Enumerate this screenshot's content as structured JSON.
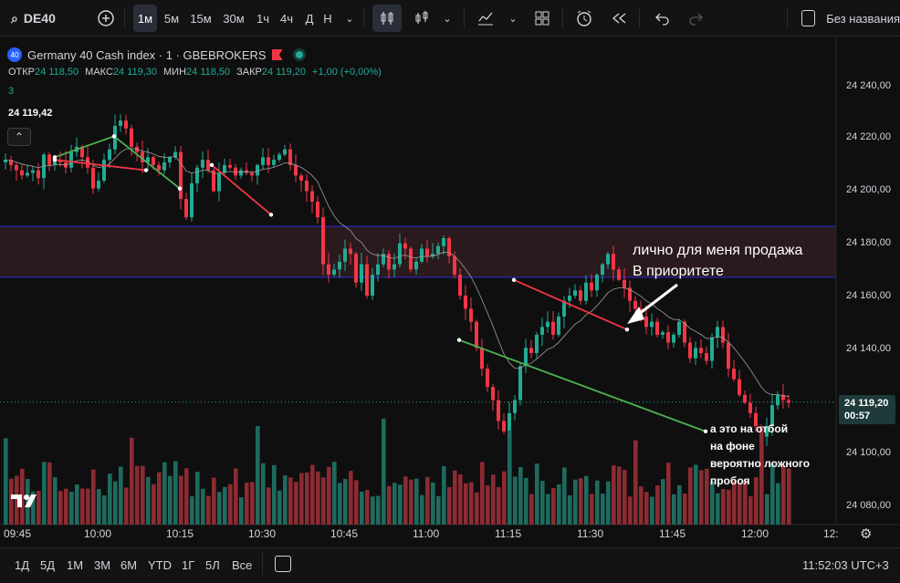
{
  "toolbar": {
    "symbol": "DE40",
    "timeframes": [
      "1м",
      "5м",
      "15м",
      "30м",
      "1ч",
      "4ч",
      "Д",
      "Н"
    ],
    "active_timeframe": "1м",
    "layout_name": "Без названия"
  },
  "legend": {
    "badge": "40",
    "title": "Germany 40 Cash index · 1 · GBEBROKERS",
    "ohlc": [
      {
        "label": "ОТКР",
        "value": "24 118,50"
      },
      {
        "label": "МАКС",
        "value": "24 119,30"
      },
      {
        "label": "МИН",
        "value": "24 118,50"
      },
      {
        "label": "ЗАКР",
        "value": "24 119,20"
      }
    ],
    "change": "+1,00 (+0,00%)",
    "indicator_value": "3",
    "price_marker": "24 119,42"
  },
  "annotations": {
    "main": "лично для меня продажа В приоритете",
    "main_line1": "лично для меня продажа",
    "main_line2": "В приоритете",
    "small_line1": "а это на отбой",
    "small_line2": "на фоне",
    "small_line3": "вероятно ложного",
    "small_line4": "пробоя"
  },
  "price_axis": {
    "labels": [
      "24 240,00",
      "24 220,00",
      "24 200,00",
      "24 180,00",
      "24 160,00",
      "24 140,00",
      "24 100,00",
      "24 080,00"
    ],
    "current_price": "24 119,20",
    "countdown": "00:57"
  },
  "time_axis": {
    "labels": [
      "09:45",
      "10:00",
      "10:15",
      "10:30",
      "10:45",
      "11:00",
      "11:15",
      "11:30",
      "11:45",
      "12:00",
      "12:"
    ]
  },
  "bottom": {
    "ranges": [
      "1Д",
      "5Д",
      "1М",
      "3М",
      "6М",
      "YTD",
      "1Г",
      "5Л",
      "Все"
    ],
    "clock": "11:52:03 UTC+3"
  },
  "colors": {
    "up": "#22ab94",
    "down": "#f23645",
    "zone": "#2a1a1d",
    "zone_border": "#2a2ad8",
    "trend_down": "#f23645",
    "trend_up": "#4caf50"
  },
  "chart_data": {
    "type": "candlestick",
    "ylim": [
      24070,
      24252
    ],
    "time_labels": [
      "09:45",
      "10:00",
      "10:15",
      "10:30",
      "10:45",
      "11:00",
      "11:15",
      "11:30",
      "11:45",
      "12:00"
    ],
    "close": [
      24212,
      24210,
      24208,
      24206,
      24207,
      24208,
      24205,
      24214,
      24210,
      24212,
      24211,
      24209,
      24215,
      24217,
      24213,
      24209,
      24201,
      24204,
      24212,
      24216,
      24225,
      24227,
      24224,
      24217,
      24215,
      24211,
      24213,
      24210,
      24208,
      24211,
      24213,
      24215,
      24197,
      24190,
      24203,
      24209,
      24212,
      24208,
      24200,
      24207,
      24210,
      24209,
      24206,
      24208,
      24207,
      24206,
      24210,
      24213,
      24210,
      24212,
      24214,
      24216,
      24210,
      24206,
      24204,
      24200,
      24196,
      24190,
      24172,
      24168,
      24170,
      24173,
      24178,
      24176,
      24165,
      24172,
      24160,
      24168,
      24172,
      24176,
      24170,
      24172,
      24180,
      24178,
      24170,
      24173,
      24178,
      24175,
      24176,
      24179,
      24182,
      24175,
      24168,
      24160,
      24155,
      24150,
      24140,
      24132,
      24125,
      24120,
      24112,
      24108,
      24115,
      24120,
      24133,
      24140,
      24138,
      24145,
      24148,
      24150,
      24145,
      24152,
      24158,
      24160,
      24162,
      24158,
      24165,
      24162,
      24168,
      24172,
      24176,
      24170,
      24166,
      24163,
      24158,
      24155,
      24152,
      24148,
      24150,
      24145,
      24146,
      24142,
      24145,
      24150,
      24142,
      24136,
      24140,
      24138,
      24135,
      24144,
      24148,
      24142,
      24132,
      24128,
      24122,
      24119,
      24115,
      24110,
      24106,
      24110,
      24118,
      24122,
      24120,
      24119
    ],
    "volume_note": "volume bars rendered procedurally"
  }
}
